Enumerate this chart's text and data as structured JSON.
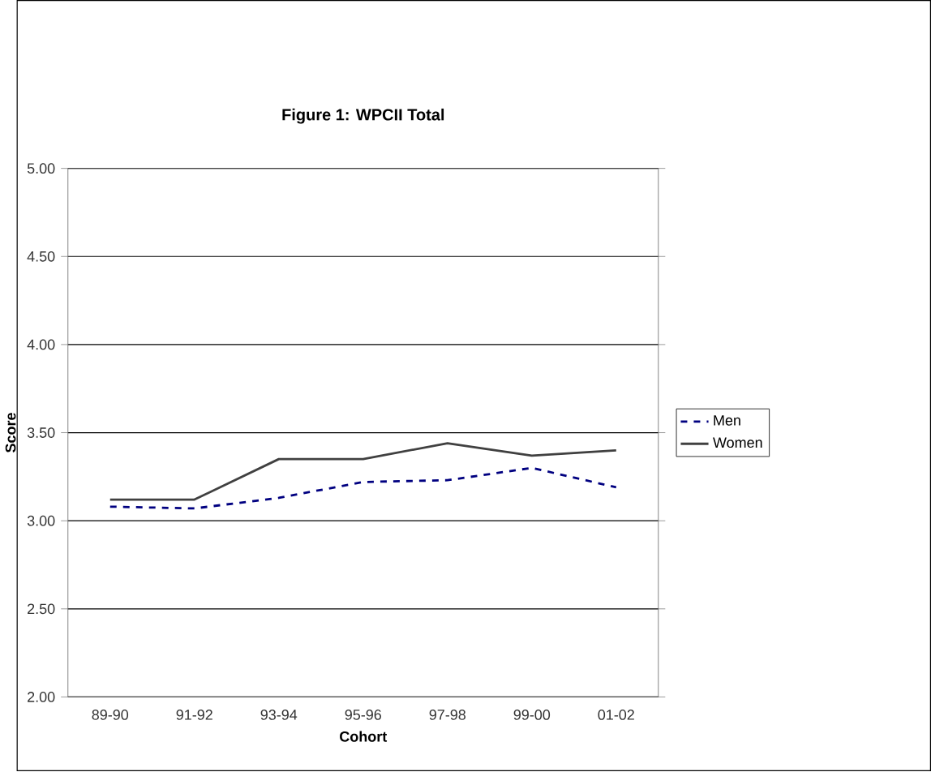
{
  "chart_data": {
    "type": "line",
    "title": "Figure 1:  WPCII Total",
    "xlabel": "Cohort",
    "ylabel": "Score",
    "categories": [
      "89-90",
      "91-92",
      "93-94",
      "95-96",
      "97-98",
      "99-00",
      "01-02"
    ],
    "series": [
      {
        "name": "Men",
        "color": "#000080",
        "line_style": "dashed",
        "values": [
          3.08,
          3.07,
          3.13,
          3.22,
          3.23,
          3.3,
          3.19
        ]
      },
      {
        "name": "Women",
        "color": "#404040",
        "line_style": "solid",
        "values": [
          3.12,
          3.12,
          3.35,
          3.35,
          3.44,
          3.37,
          3.4
        ]
      }
    ],
    "ylim": [
      2,
      5
    ],
    "yticks": [
      {
        "value": 2,
        "label": "2.00"
      },
      {
        "value": 2.5,
        "label": "2.50"
      },
      {
        "value": 3,
        "label": "3.00"
      },
      {
        "value": 3.5,
        "label": "3.50"
      },
      {
        "value": 4,
        "label": "4.00"
      },
      {
        "value": 4.5,
        "label": "4.50"
      },
      {
        "value": 5,
        "label": "5.00"
      }
    ],
    "grid": "y",
    "legend": "right",
    "marker": "none"
  }
}
